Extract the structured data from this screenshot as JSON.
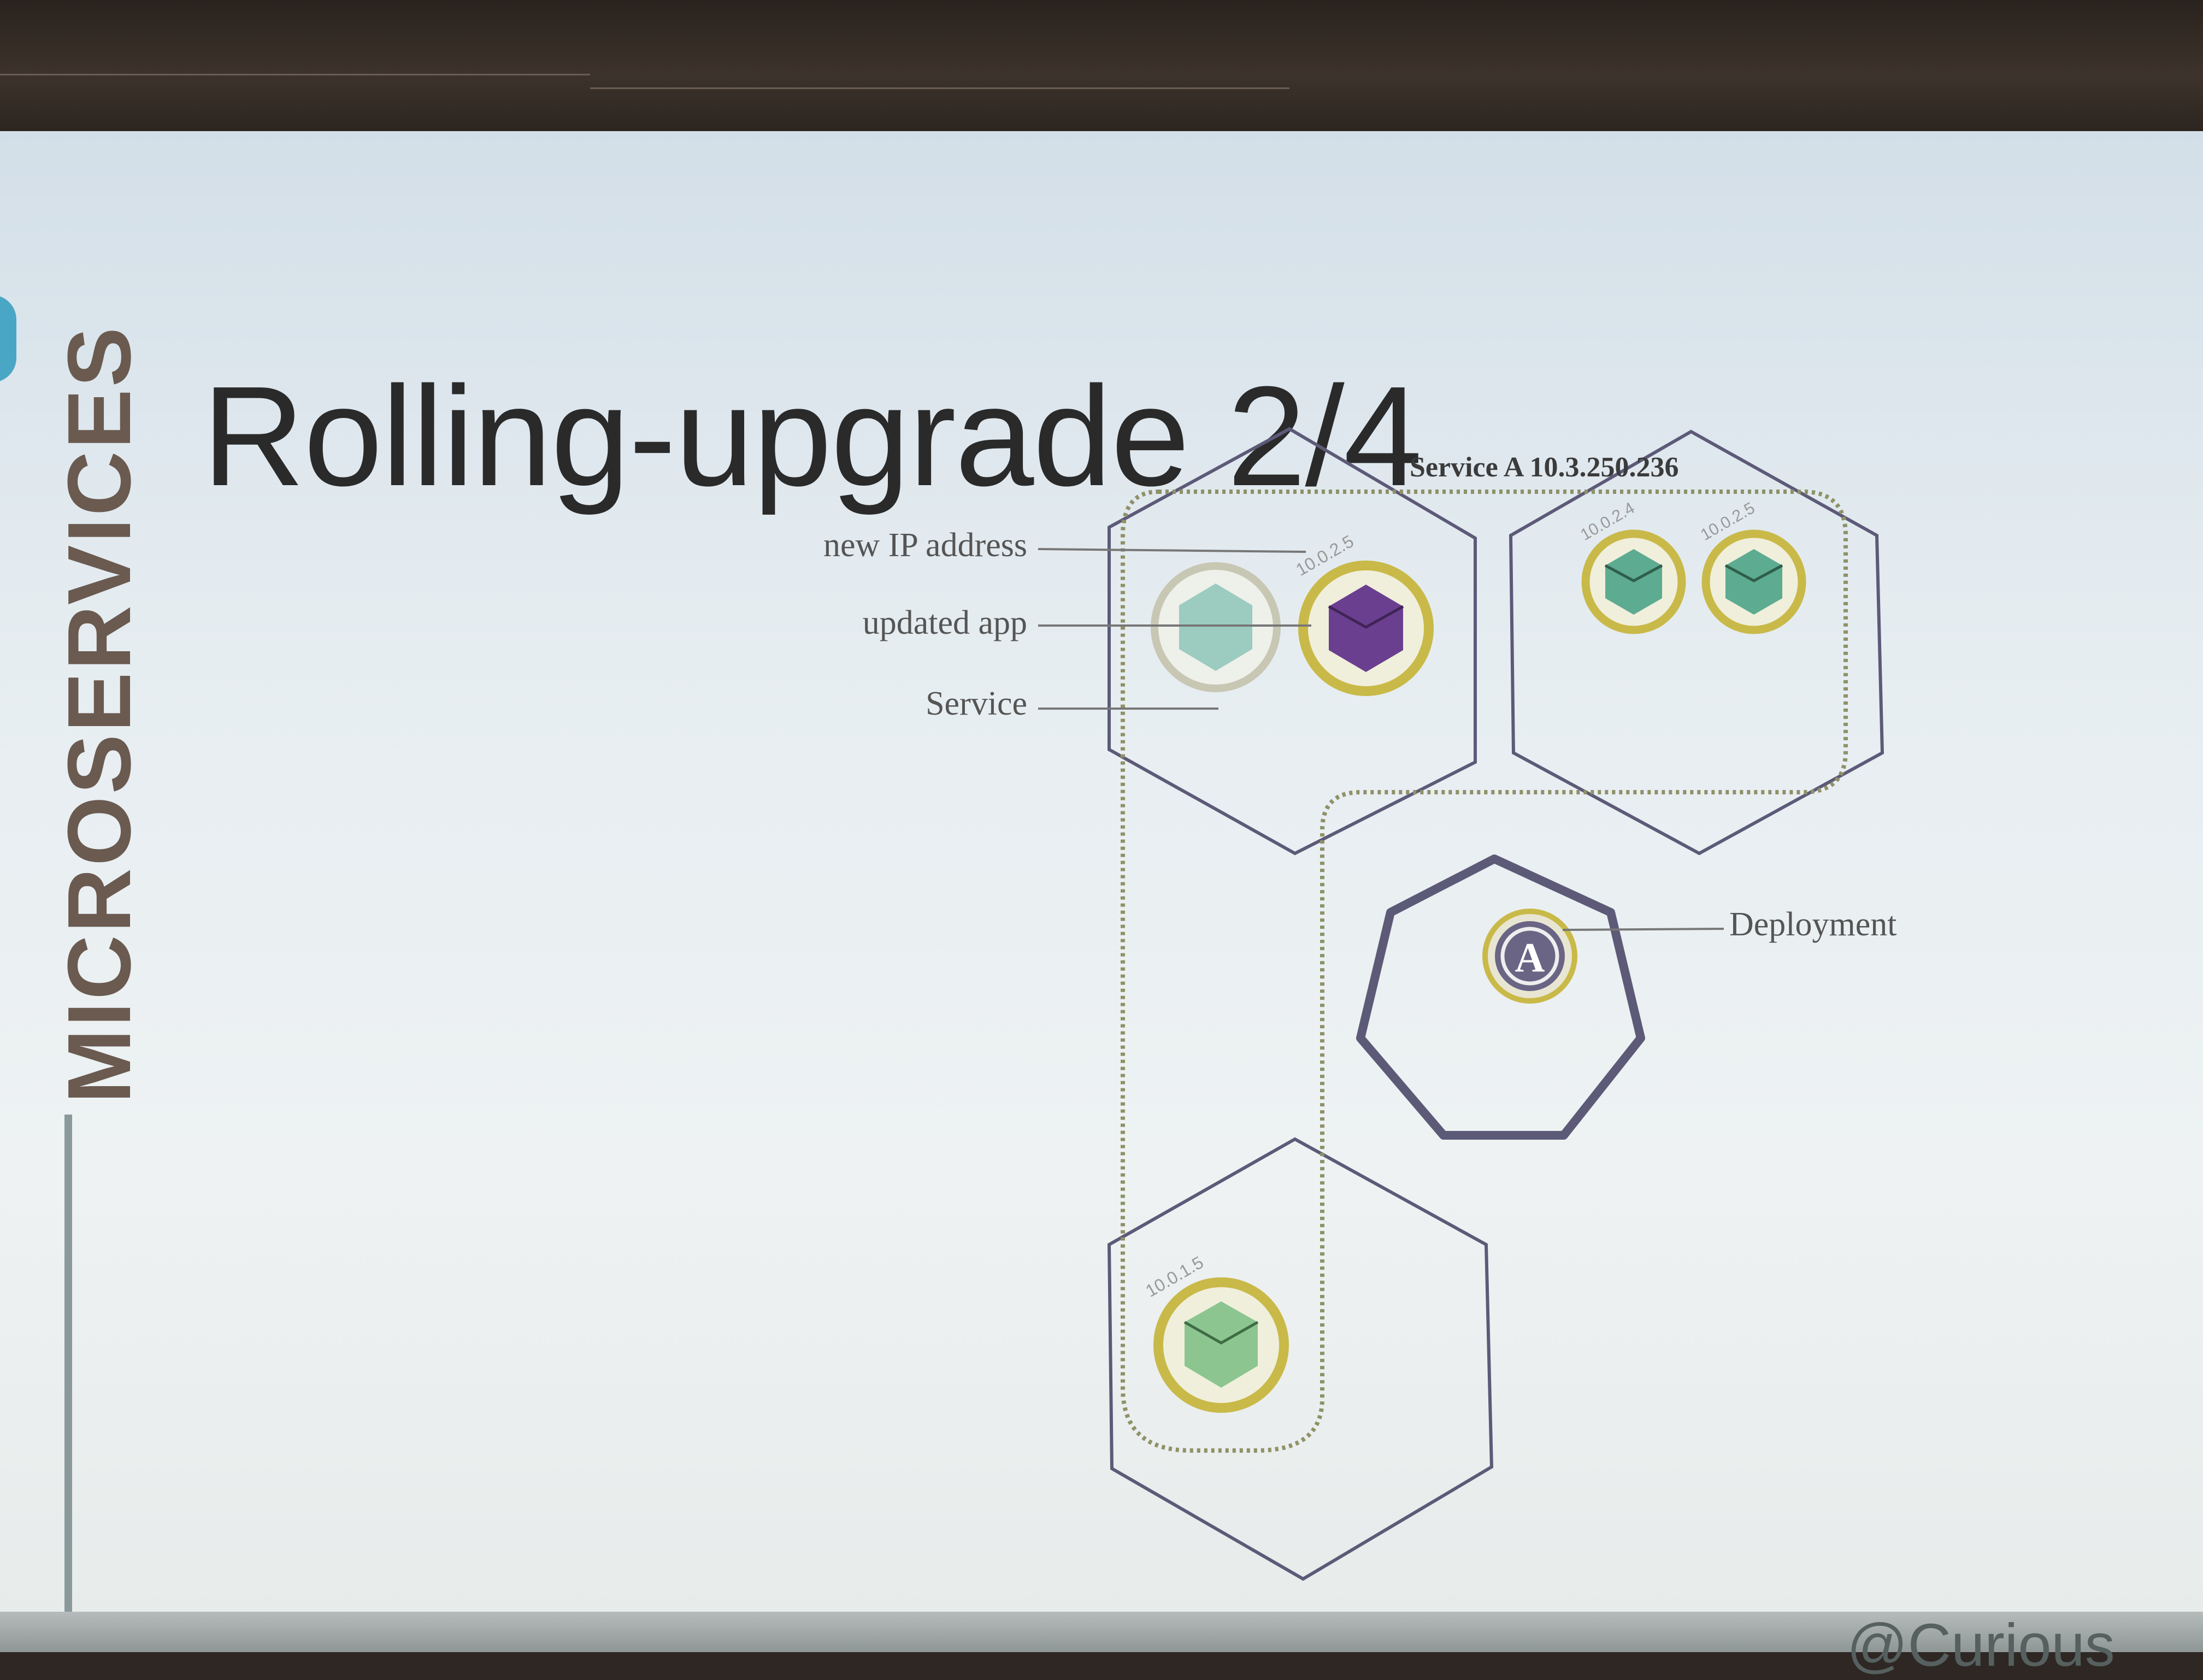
{
  "slide": {
    "title": "Rolling-upgrade 2/4",
    "sidebar_label": "MICROSERVICES",
    "footer_partial": "@Curious"
  },
  "diagram": {
    "service_label": "Service A 10.3.250.236",
    "callouts": {
      "new_ip": "new IP address",
      "updated_app": "updated app",
      "service": "Service",
      "deployment": "Deployment"
    },
    "deployment_badge": "A",
    "pod_ips": {
      "updated_pod": "10.0.2.5",
      "right_pod_1": "10.0.2.4",
      "right_pod_2": "10.0.2.5",
      "bottom_pod": "10.0.1.5"
    },
    "colors": {
      "node_outline": "#5d5a78",
      "pod_ring": "#c9b948",
      "old_app": "#5dab90",
      "updated_app": "#6b3f8f",
      "faded_app": "#9ccbc0",
      "service_border": "#8f9167"
    }
  }
}
